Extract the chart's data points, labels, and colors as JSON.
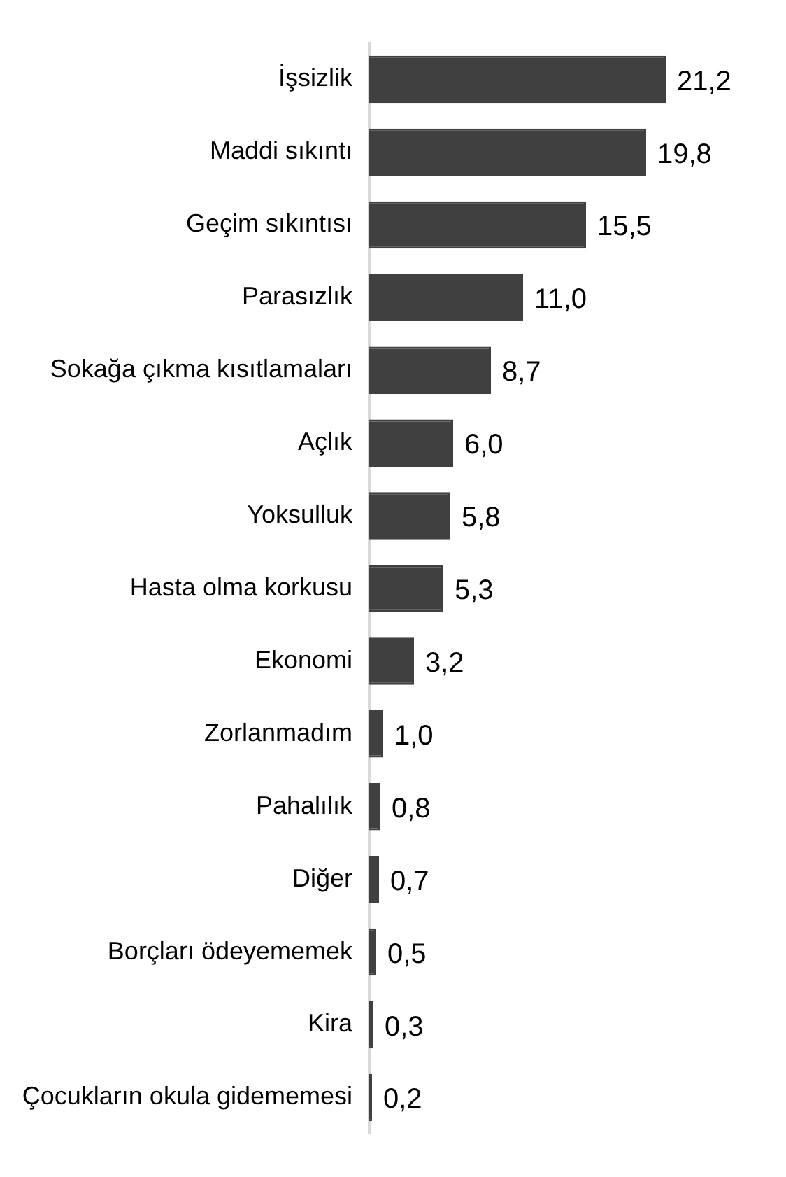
{
  "chart_data": {
    "type": "bar",
    "orientation": "horizontal",
    "categories": [
      "İşsizlik",
      "Maddi sıkıntı",
      "Geçim sıkıntısı",
      "Parasızlık",
      "Sokağa çıkma kısıtlamaları",
      "Açlık",
      "Yoksulluk",
      "Hasta olma korkusu",
      "Ekonomi",
      "Zorlanmadım",
      "Pahalılık",
      "Diğer",
      "Borçları ödeyememek",
      "Kira",
      "Çocukların okula gidememesi"
    ],
    "values": [
      21.2,
      19.8,
      15.5,
      11.0,
      8.7,
      6.0,
      5.8,
      5.3,
      3.2,
      1.0,
      0.8,
      0.7,
      0.5,
      0.3,
      0.2
    ],
    "value_labels": [
      "21,2",
      "19,8",
      "15,5",
      "11,0",
      "8,7",
      "6,0",
      "5,8",
      "5,3",
      "3,2",
      "1,0",
      "0,8",
      "0,7",
      "0,5",
      "0,3",
      "0,2"
    ],
    "color": "#404040",
    "legend": false,
    "tick_labels": "y"
  }
}
